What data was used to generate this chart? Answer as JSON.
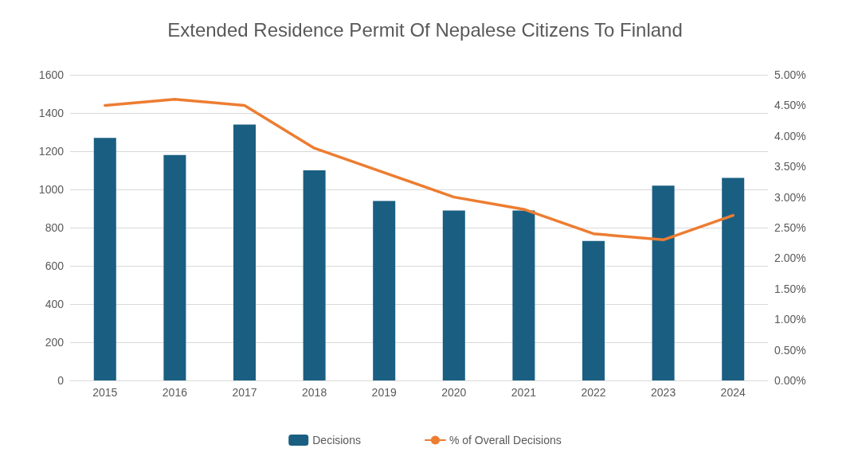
{
  "chart_data": {
    "type": "bar",
    "title": "Extended Residence Permit Of Nepalese Citizens To Finland",
    "categories": [
      "2015",
      "2016",
      "2017",
      "2018",
      "2019",
      "2020",
      "2021",
      "2022",
      "2023",
      "2024"
    ],
    "series": [
      {
        "name": "Decisions",
        "color": "#1a5f82",
        "values": [
          1270,
          1180,
          1340,
          1100,
          940,
          890,
          890,
          730,
          1020,
          1060
        ]
      },
      {
        "name": "% of Overall Decisions",
        "type": "line",
        "axis": "y2",
        "color": "#ed7d31",
        "values": [
          4.5,
          4.6,
          4.5,
          3.8,
          3.4,
          3.0,
          2.8,
          2.4,
          2.3,
          2.7
        ]
      }
    ],
    "ylim": [
      0,
      1600
    ],
    "yticks": [
      0,
      200,
      400,
      600,
      800,
      1000,
      1200,
      1400,
      1600
    ],
    "y2lim": [
      0,
      5
    ],
    "y2ticks": [
      {
        "value": 0,
        "label": "0.00%"
      },
      {
        "value": 0.5,
        "label": "0.50%"
      },
      {
        "value": 1,
        "label": "1.00%"
      },
      {
        "value": 1.5,
        "label": "1.50%"
      },
      {
        "value": 2,
        "label": "2.00%"
      },
      {
        "value": 2.5,
        "label": "2.50%"
      },
      {
        "value": 3,
        "label": "3.00%"
      },
      {
        "value": 3.5,
        "label": "3.50%"
      },
      {
        "value": 4,
        "label": "4.00%"
      },
      {
        "value": 4.5,
        "label": "4.50%"
      },
      {
        "value": 5,
        "label": "5.00%"
      }
    ],
    "grid": "y",
    "legend": "bottom",
    "marker": "none"
  }
}
